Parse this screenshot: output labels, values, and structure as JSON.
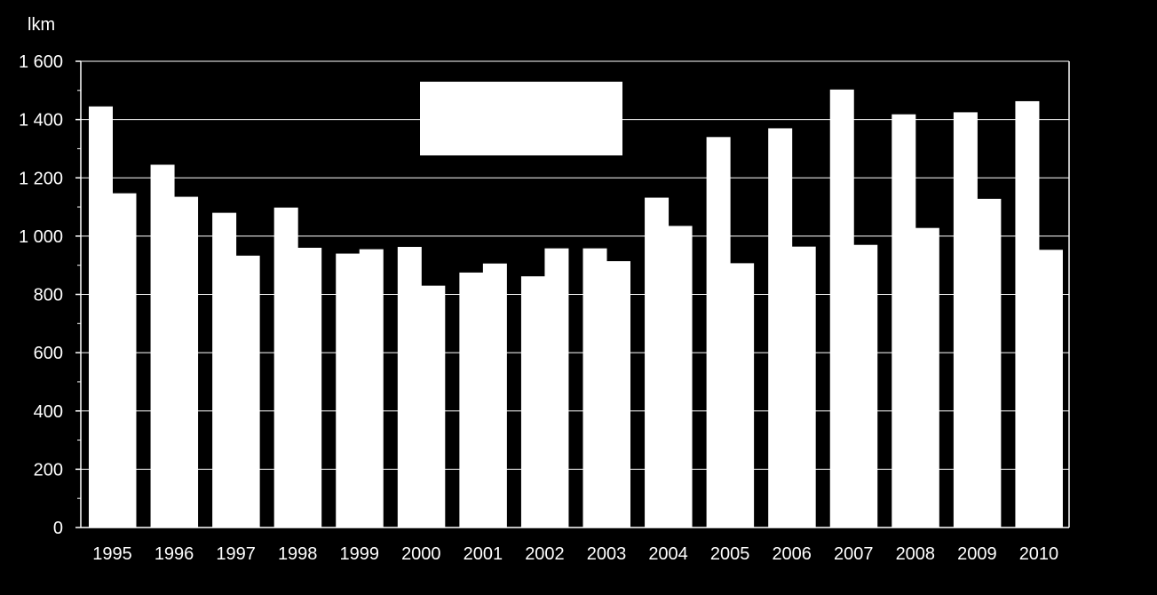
{
  "chart_data": {
    "type": "bar",
    "ylabel": "lkm",
    "ylim": [
      0,
      1600
    ],
    "ytick_step": 200,
    "ytick_labels": [
      "0",
      "200",
      "400",
      "600",
      "800",
      "1 000",
      "1 200",
      "1 400",
      "1 600"
    ],
    "grid": true,
    "legend": "top-center",
    "categories": [
      "1995",
      "1996",
      "1997",
      "1998",
      "1999",
      "2000",
      "2001",
      "2002",
      "2003",
      "2004",
      "2005",
      "2006",
      "2007",
      "2008",
      "2009",
      "2010"
    ],
    "series": [
      {
        "values": [
          1445,
          1245,
          1080,
          1098,
          940,
          963,
          875,
          862,
          958,
          1132,
          1340,
          1370,
          1503,
          1418,
          1425,
          1463
        ]
      },
      {
        "values": [
          1147,
          1135,
          933,
          960,
          955,
          830,
          906,
          958,
          914,
          1035,
          907,
          964,
          970,
          1028,
          1128,
          953
        ]
      }
    ],
    "colors": {
      "background": "#000000",
      "bars": "#ffffff",
      "grid": "#ffffff",
      "legend_box": "#ffffff"
    }
  }
}
